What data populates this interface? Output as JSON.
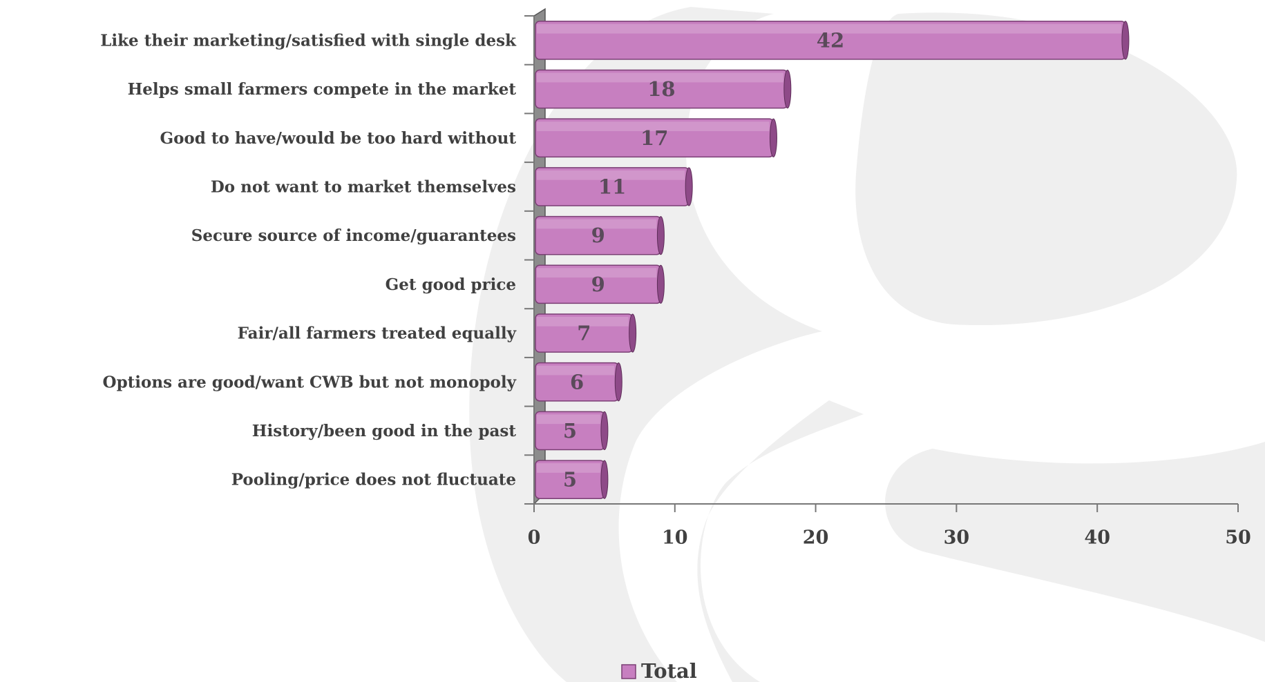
{
  "chart_data": {
    "type": "bar",
    "orientation": "horizontal",
    "categories": [
      "Like their marketing/satisfied with single desk",
      "Helps small farmers compete in the market",
      "Good to have/would be too hard without",
      "Do not want to market themselves",
      "Secure source of income/guarantees",
      "Get good price",
      "Fair/all farmers treated equally",
      "Options are good/want CWB but not monopoly",
      "History/been good in the past",
      "Pooling/price does not fluctuate"
    ],
    "series": [
      {
        "name": "Total",
        "color": "#c77fc0",
        "values": [
          42,
          18,
          17,
          11,
          9,
          9,
          7,
          6,
          5,
          5
        ]
      }
    ],
    "xlim": [
      0,
      50
    ],
    "xticks": [
      0,
      10,
      20,
      30,
      40,
      50
    ],
    "grid": false
  }
}
